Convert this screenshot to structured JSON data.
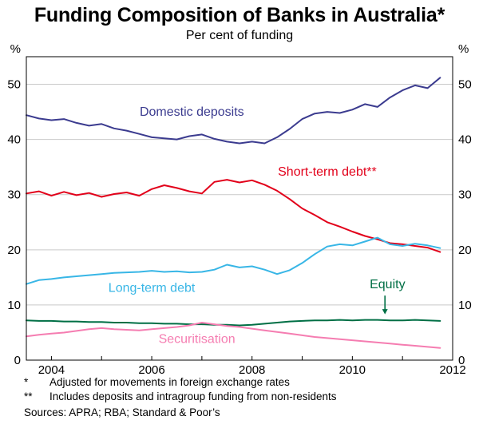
{
  "page": {
    "footnotes": [
      {
        "marker": "*",
        "text": "Adjusted for movements in foreign exchange rates"
      },
      {
        "marker": "**",
        "text": "Includes deposits and intragroup funding from non-residents"
      }
    ],
    "sources": "Sources: APRA; RBA; Standard & Poor’s"
  },
  "chart_data": {
    "type": "line",
    "title": "Funding Composition of Banks in Australia*",
    "subtitle": "Per cent of funding",
    "unit": "%",
    "xlim": [
      2003.5,
      2012
    ],
    "ylim": [
      0,
      55
    ],
    "yticks": [
      0,
      10,
      20,
      30,
      40,
      50
    ],
    "xticks": [
      2004,
      2006,
      2008,
      2010,
      2012
    ],
    "grid": "horizontal",
    "legend": "inline-labels",
    "x": [
      2003.5,
      2003.75,
      2004,
      2004.25,
      2004.5,
      2004.75,
      2005,
      2005.25,
      2005.5,
      2005.75,
      2006,
      2006.25,
      2006.5,
      2006.75,
      2007,
      2007.25,
      2007.5,
      2007.75,
      2008,
      2008.25,
      2008.5,
      2008.75,
      2009,
      2009.25,
      2009.5,
      2009.75,
      2010,
      2010.25,
      2010.5,
      2010.75,
      2011,
      2011.25,
      2011.5,
      2011.75
    ],
    "series": [
      {
        "name": "Domestic deposits",
        "color": "#3b3b8f",
        "values": [
          44.4,
          43.8,
          43.5,
          43.7,
          43.0,
          42.5,
          42.8,
          42.0,
          41.6,
          41.0,
          40.4,
          40.2,
          40.0,
          40.6,
          40.9,
          40.1,
          39.6,
          39.3,
          39.6,
          39.3,
          40.4,
          41.9,
          43.7,
          44.7,
          45.0,
          44.8,
          45.4,
          46.4,
          45.9,
          47.6,
          48.9,
          49.8,
          49.3,
          51.2
        ]
      },
      {
        "name": "Short-term debt**",
        "color": "#e2001a",
        "values": [
          30.2,
          30.6,
          29.8,
          30.5,
          29.9,
          30.3,
          29.6,
          30.1,
          30.4,
          29.8,
          31.0,
          31.7,
          31.2,
          30.6,
          30.2,
          32.3,
          32.7,
          32.2,
          32.6,
          31.8,
          30.7,
          29.2,
          27.5,
          26.3,
          25.0,
          24.2,
          23.3,
          22.5,
          21.9,
          21.2,
          21.0,
          20.7,
          20.4,
          19.6
        ]
      },
      {
        "name": "Long-term debt",
        "color": "#38b6e6",
        "values": [
          13.8,
          14.5,
          14.7,
          15.0,
          15.2,
          15.4,
          15.6,
          15.8,
          15.9,
          16.0,
          16.2,
          16.0,
          16.1,
          15.9,
          16.0,
          16.4,
          17.3,
          16.8,
          17.0,
          16.4,
          15.6,
          16.3,
          17.6,
          19.2,
          20.6,
          21.0,
          20.8,
          21.5,
          22.2,
          21.0,
          20.7,
          21.1,
          20.8,
          20.3
        ]
      },
      {
        "name": "Equity",
        "color": "#006f45",
        "values": [
          7.2,
          7.1,
          7.1,
          7.0,
          7.0,
          6.9,
          6.9,
          6.8,
          6.8,
          6.7,
          6.7,
          6.6,
          6.6,
          6.5,
          6.5,
          6.4,
          6.4,
          6.3,
          6.4,
          6.6,
          6.8,
          7.0,
          7.1,
          7.2,
          7.2,
          7.3,
          7.2,
          7.3,
          7.3,
          7.2,
          7.2,
          7.3,
          7.2,
          7.1
        ]
      },
      {
        "name": "Securitisation",
        "color": "#f57db1",
        "values": [
          4.3,
          4.6,
          4.8,
          5.0,
          5.3,
          5.6,
          5.8,
          5.6,
          5.5,
          5.4,
          5.6,
          5.8,
          6.0,
          6.3,
          6.8,
          6.5,
          6.2,
          6.0,
          5.7,
          5.4,
          5.1,
          4.8,
          4.5,
          4.2,
          4.0,
          3.8,
          3.6,
          3.4,
          3.2,
          3.0,
          2.8,
          2.6,
          2.4,
          2.2
        ]
      }
    ],
    "labels": [
      {
        "text": "Domestic deposits",
        "x": 2006.8,
        "y": 44.3,
        "color": "#3b3b8f"
      },
      {
        "text": "Short-term debt**",
        "x": 2009.5,
        "y": 33.4,
        "color": "#e2001a"
      },
      {
        "text": "Long-term debt",
        "x": 2006.0,
        "y": 12.4,
        "color": "#38b6e6"
      },
      {
        "text": "Equity",
        "x": 2010.7,
        "y": 13.0,
        "color": "#006f45"
      },
      {
        "text": "Securitisation",
        "x": 2006.9,
        "y": 3.1,
        "color": "#f57db1"
      }
    ],
    "arrow": {
      "x": 2010.65,
      "from_y": 11.7,
      "to_y": 8.3,
      "color": "#006f45"
    }
  }
}
